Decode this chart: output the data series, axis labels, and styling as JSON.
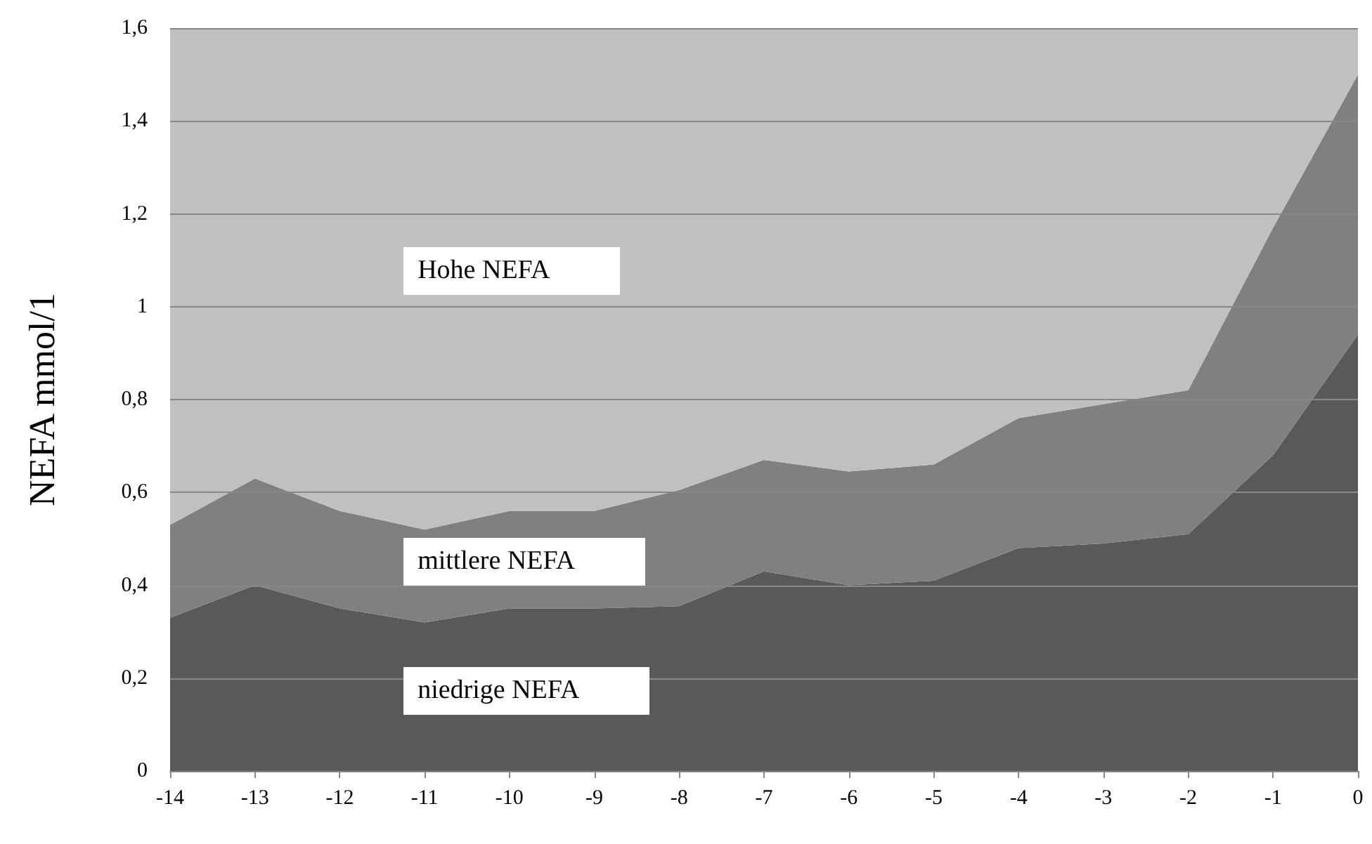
{
  "chart_data": {
    "type": "area",
    "stacked": true,
    "ylabel": "NEFA mmol/1",
    "x": [
      -14,
      -13,
      -12,
      -11,
      -10,
      -9,
      -8,
      -7,
      -6,
      -5,
      -4,
      -3,
      -2,
      -1,
      0
    ],
    "series": [
      {
        "name": "niedrige NEFA",
        "color": "#595959",
        "values": [
          0.33,
          0.4,
          0.35,
          0.32,
          0.35,
          0.35,
          0.355,
          0.43,
          0.4,
          0.41,
          0.48,
          0.49,
          0.51,
          0.68,
          0.94
        ]
      },
      {
        "name": "mittlere NEFA",
        "color": "#808080",
        "values": [
          0.2,
          0.23,
          0.21,
          0.2,
          0.21,
          0.21,
          0.25,
          0.24,
          0.245,
          0.25,
          0.28,
          0.3,
          0.31,
          0.49,
          0.56
        ]
      },
      {
        "name": "Hohe NEFA",
        "color": "#c0c0c0",
        "values": [
          1.07,
          0.97,
          1.04,
          1.08,
          1.04,
          1.04,
          0.995,
          0.93,
          0.955,
          0.94,
          0.84,
          0.81,
          0.78,
          0.43,
          0.1
        ]
      }
    ],
    "xlim": [
      -14,
      0
    ],
    "xticks": [
      -14,
      -13,
      -12,
      -11,
      -10,
      -9,
      -8,
      -7,
      -6,
      -5,
      -4,
      -3,
      -2,
      -1,
      0
    ],
    "ylim": [
      0,
      1.6
    ],
    "yticks": [
      0,
      {
        "value": 0.2,
        "label": "0,2"
      },
      {
        "value": 0.4,
        "label": "0,4"
      },
      {
        "value": 0.6,
        "label": "0,6"
      },
      {
        "value": 0.8,
        "label": "0,8"
      },
      1,
      {
        "value": 1.2,
        "label": "1,2"
      },
      {
        "value": 1.4,
        "label": "1,4"
      },
      {
        "value": 1.6,
        "label": "1,6"
      }
    ],
    "grid": "y",
    "legend": false
  }
}
